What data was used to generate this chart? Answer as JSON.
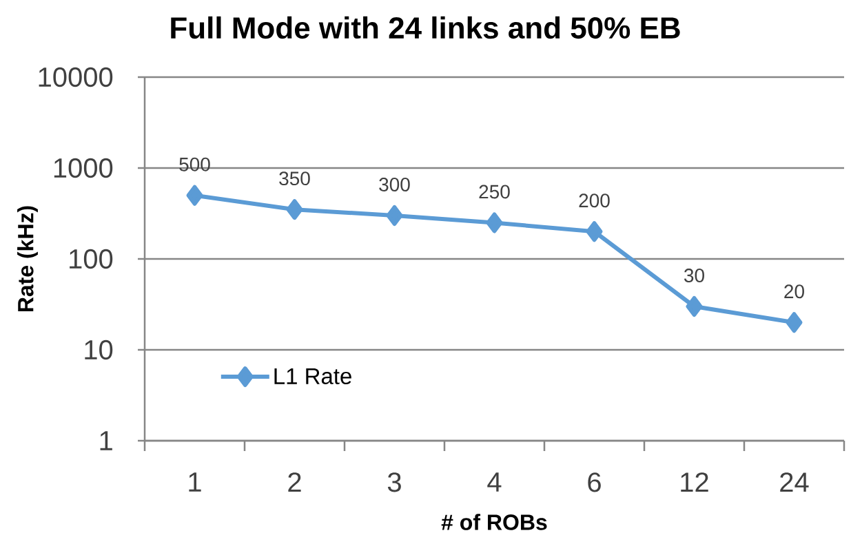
{
  "chart_data": {
    "type": "line",
    "title": "Full Mode with 24 links and 50% EB",
    "xlabel": "# of ROBs",
    "ylabel": "Rate (kHz)",
    "categories": [
      "1",
      "2",
      "3",
      "4",
      "6",
      "12",
      "24"
    ],
    "series": [
      {
        "name": "L1 Rate",
        "color": "#5b9bd5",
        "values": [
          500,
          350,
          300,
          250,
          200,
          30,
          20
        ]
      }
    ],
    "ylim": [
      1,
      10000
    ],
    "yticks": [
      1,
      10,
      100,
      1000,
      10000
    ],
    "log": "y",
    "grid": "y",
    "legend": "bottom left",
    "marker": "diamond",
    "line_style": "solid",
    "data_labels": true
  }
}
